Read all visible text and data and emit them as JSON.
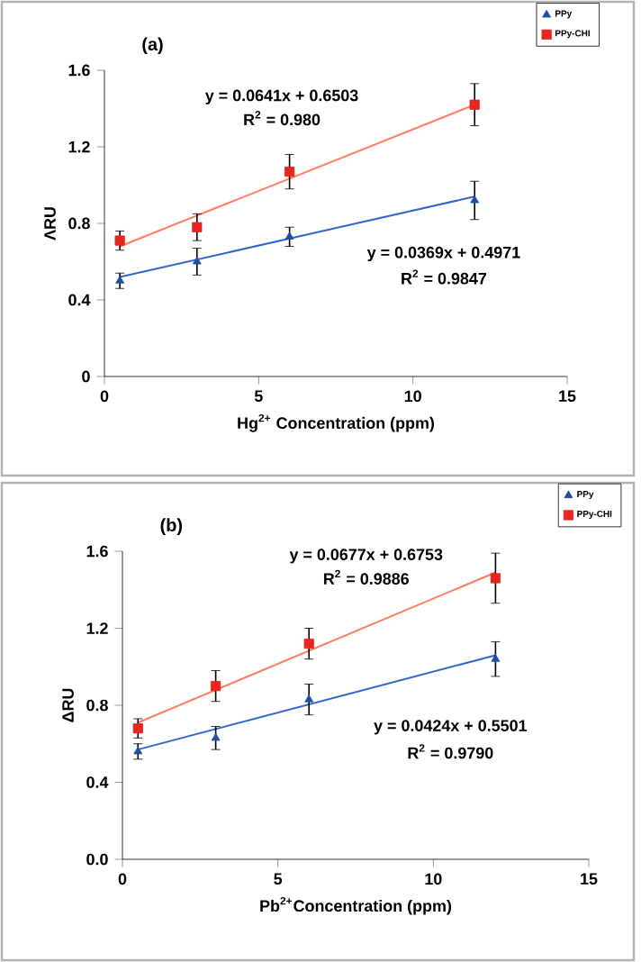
{
  "chart_data": [
    {
      "type": "scatter",
      "title": "(a)",
      "xlabel": "Hg$^{2+}$ Concentration (ppm)",
      "ylabel": "ΛRU",
      "xlim": [
        0,
        15
      ],
      "xticks": [
        0,
        5,
        10,
        15
      ],
      "ylim": [
        0,
        1.6
      ],
      "yticks": [
        0,
        0.4,
        0.8,
        1.2,
        1.6
      ],
      "legend": "top right",
      "grid": false,
      "series": [
        {
          "name": "PPy",
          "marker": "triangle",
          "color": "#1f4fa0",
          "x": [
            0.5,
            3,
            6,
            12
          ],
          "values": [
            0.5,
            0.6,
            0.73,
            0.92
          ],
          "errors": [
            0.04,
            0.07,
            0.05,
            0.1
          ]
        },
        {
          "name": "PPy-CHI",
          "marker": "square",
          "color": "#e8251f",
          "x": [
            0.5,
            3,
            6,
            12
          ],
          "values": [
            0.71,
            0.78,
            1.07,
            1.42
          ],
          "errors": [
            0.05,
            0.07,
            0.09,
            0.11
          ]
        },
        {
          "type": "line",
          "color": "#3366cc",
          "x": [
            0.5,
            12
          ],
          "values": [
            0.52,
            0.94
          ]
        },
        {
          "type": "line",
          "color": "#ff7b61",
          "x": [
            0.5,
            12
          ],
          "values": [
            0.68,
            1.42
          ]
        }
      ],
      "annotations": [
        "y = 0.0641x + 0.6503",
        "R$^{2}$ = 0.980",
        "y = 0.0369x + 0.4971",
        "R$^{2}$ = 0.9847"
      ]
    },
    {
      "type": "scatter",
      "title": "(b)",
      "xlabel": "Pb$^{2+}$Concentration (ppm)",
      "ylabel": "ΔRU",
      "xlim": [
        0,
        15
      ],
      "xticks": [
        0,
        5,
        10,
        15
      ],
      "ylim": [
        0,
        1.6
      ],
      "yticks": [
        {
          "value": 0,
          "label": "0.0"
        },
        0.4,
        0.8,
        1.2,
        1.6
      ],
      "legend": "top right",
      "grid": false,
      "series": [
        {
          "name": "PPy",
          "marker": "triangle",
          "color": "#1f4fa0",
          "x": [
            0.5,
            3,
            6,
            12
          ],
          "values": [
            0.56,
            0.63,
            0.83,
            1.04
          ],
          "errors": [
            0.04,
            0.06,
            0.08,
            0.09
          ]
        },
        {
          "name": "PPy-CHI",
          "marker": "square",
          "color": "#e8251f",
          "x": [
            0.5,
            3,
            6,
            12
          ],
          "values": [
            0.68,
            0.9,
            1.12,
            1.46
          ],
          "errors": [
            0.05,
            0.08,
            0.08,
            0.13
          ]
        },
        {
          "type": "line",
          "color": "#3366cc",
          "x": [
            0.5,
            12
          ],
          "values": [
            0.57,
            1.06
          ]
        },
        {
          "type": "line",
          "color": "#ff7b61",
          "x": [
            0.5,
            12
          ],
          "values": [
            0.71,
            1.49
          ]
        }
      ],
      "annotations": [
        "y = 0.0677x + 0.6753",
        "R$^{2}$ = 0.9886",
        "y = 0.0424x + 0.5501",
        "R$^{2}$ = 0.9790"
      ]
    }
  ]
}
